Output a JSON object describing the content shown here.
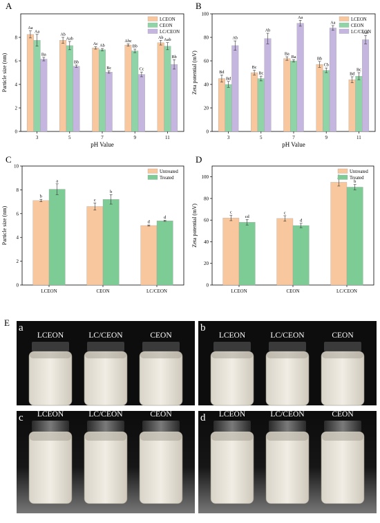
{
  "colors": {
    "lceon": "#F9C79D",
    "ceon": "#8FD4A6",
    "lcceon": "#C5B6E0",
    "untreated": "#F9C79D",
    "treated": "#7DCB95",
    "photo_bg": "#0d0d0d",
    "emulsion": "#f1ede4"
  },
  "chart_data": [
    {
      "panel": "A",
      "type": "bar",
      "xlabel": "pH Value",
      "ylabel": "Particle size (nm)",
      "ylim": [
        0,
        10
      ],
      "yticks": [
        0,
        2,
        4,
        6,
        8
      ],
      "categories": [
        "3",
        "5",
        "7",
        "9",
        "11"
      ],
      "legend_position": "top-right",
      "series": [
        {
          "name": "LCEON",
          "color_key": "lceon",
          "values": [
            8.25,
            7.75,
            7.1,
            7.35,
            7.55
          ],
          "errors": [
            0.3,
            0.25,
            0.1,
            0.1,
            0.2
          ],
          "labels": [
            "Aa",
            "Ab",
            "Ac",
            "Abc",
            "Ab"
          ]
        },
        {
          "name": "CEON",
          "color_key": "ceon",
          "values": [
            7.75,
            7.3,
            6.95,
            6.85,
            7.25
          ],
          "errors": [
            0.5,
            0.35,
            0.1,
            0.15,
            0.3
          ],
          "labels": [
            "Aa",
            "Aab",
            "Ab",
            "Bb",
            "Aab"
          ]
        },
        {
          "name": "LC/CEON",
          "color_key": "lcceon",
          "values": [
            6.15,
            5.55,
            5.05,
            4.85,
            5.7
          ],
          "errors": [
            0.15,
            0.1,
            0.1,
            0.2,
            0.4
          ],
          "labels": [
            "Ba",
            "Bb",
            "Bc",
            "Cc",
            "Bb"
          ]
        }
      ]
    },
    {
      "panel": "B",
      "type": "bar",
      "xlabel": "pH Value",
      "ylabel": "Zeta potential (mV)",
      "ylim": [
        0,
        100
      ],
      "yticks": [
        0,
        20,
        40,
        60,
        80,
        100
      ],
      "categories": [
        "3",
        "5",
        "7",
        "9",
        "11"
      ],
      "legend_position": "top-right",
      "series": [
        {
          "name": "LCEON",
          "color_key": "lceon",
          "values": [
            45,
            50,
            62,
            57,
            44
          ],
          "errors": [
            3,
            2,
            1.5,
            2.5,
            2.5
          ],
          "labels": [
            "Bd",
            "Bc",
            "Ba",
            "Bb",
            "Bd"
          ]
        },
        {
          "name": "CEON",
          "color_key": "ceon",
          "values": [
            40,
            45,
            60,
            52,
            47
          ],
          "errors": [
            2.5,
            2,
            1,
            2,
            3
          ],
          "labels": [
            "Bd",
            "Bc",
            "Ba",
            "Cb",
            "Bc"
          ]
        },
        {
          "name": "LC/CEON",
          "color_key": "lcceon",
          "values": [
            73,
            79,
            92,
            88,
            78
          ],
          "errors": [
            4,
            4.5,
            2.5,
            2,
            3.5
          ],
          "labels": [
            "Ab",
            "Ab",
            "Aa",
            "Aa",
            "Ab"
          ]
        }
      ]
    },
    {
      "panel": "C",
      "type": "bar",
      "xlabel": "",
      "ylabel": "Particle size (nm)",
      "ylim": [
        0,
        10
      ],
      "yticks": [
        0,
        2,
        4,
        6,
        8,
        10
      ],
      "categories": [
        "LCEON",
        "CEON",
        "LC/CEON"
      ],
      "legend_position": "top-right",
      "series": [
        {
          "name": "Untreated",
          "color_key": "untreated",
          "values": [
            7.1,
            6.6,
            5.0
          ],
          "errors": [
            0.1,
            0.3,
            0.05
          ],
          "labels": [
            "b",
            "c",
            "d"
          ]
        },
        {
          "name": "Treated",
          "color_key": "treated",
          "values": [
            8.05,
            7.2,
            5.4
          ],
          "errors": [
            0.45,
            0.4,
            0.05
          ],
          "labels": [
            "a",
            "b",
            "d"
          ]
        }
      ]
    },
    {
      "panel": "D",
      "type": "bar",
      "xlabel": "",
      "ylabel": "Zeta potential (mV)",
      "ylim": [
        0,
        110
      ],
      "yticks": [
        0,
        20,
        40,
        60,
        80,
        100
      ],
      "categories": [
        "LCEON",
        "CEON",
        "LC/CEON"
      ],
      "legend_position": "top-right",
      "series": [
        {
          "name": "Untreated",
          "color_key": "untreated",
          "values": [
            62,
            61.5,
            95
          ],
          "errors": [
            2.5,
            2.5,
            3.5
          ],
          "labels": [
            "c",
            "c",
            "a"
          ]
        },
        {
          "name": "Treated",
          "color_key": "treated",
          "values": [
            58,
            55,
            90.5
          ],
          "errors": [
            2.5,
            2,
            2.5
          ],
          "labels": [
            "cd",
            "d",
            "b"
          ]
        }
      ]
    }
  ],
  "photos": {
    "panel_label": "E",
    "items": [
      {
        "letter": "a",
        "labels": [
          "LCEON",
          "LC/CEON",
          "CEON"
        ],
        "lid": "grey"
      },
      {
        "letter": "b",
        "labels": [
          "LCEON",
          "LC/CEON",
          "CEON"
        ],
        "lid": "grey"
      },
      {
        "letter": "c",
        "labels": [
          "LCEON",
          "LC/CEON",
          "CEON"
        ],
        "lid": "black"
      },
      {
        "letter": "d",
        "labels": [
          "LCEON",
          "LC/CEON",
          "CEON"
        ],
        "lid": "black"
      }
    ]
  }
}
